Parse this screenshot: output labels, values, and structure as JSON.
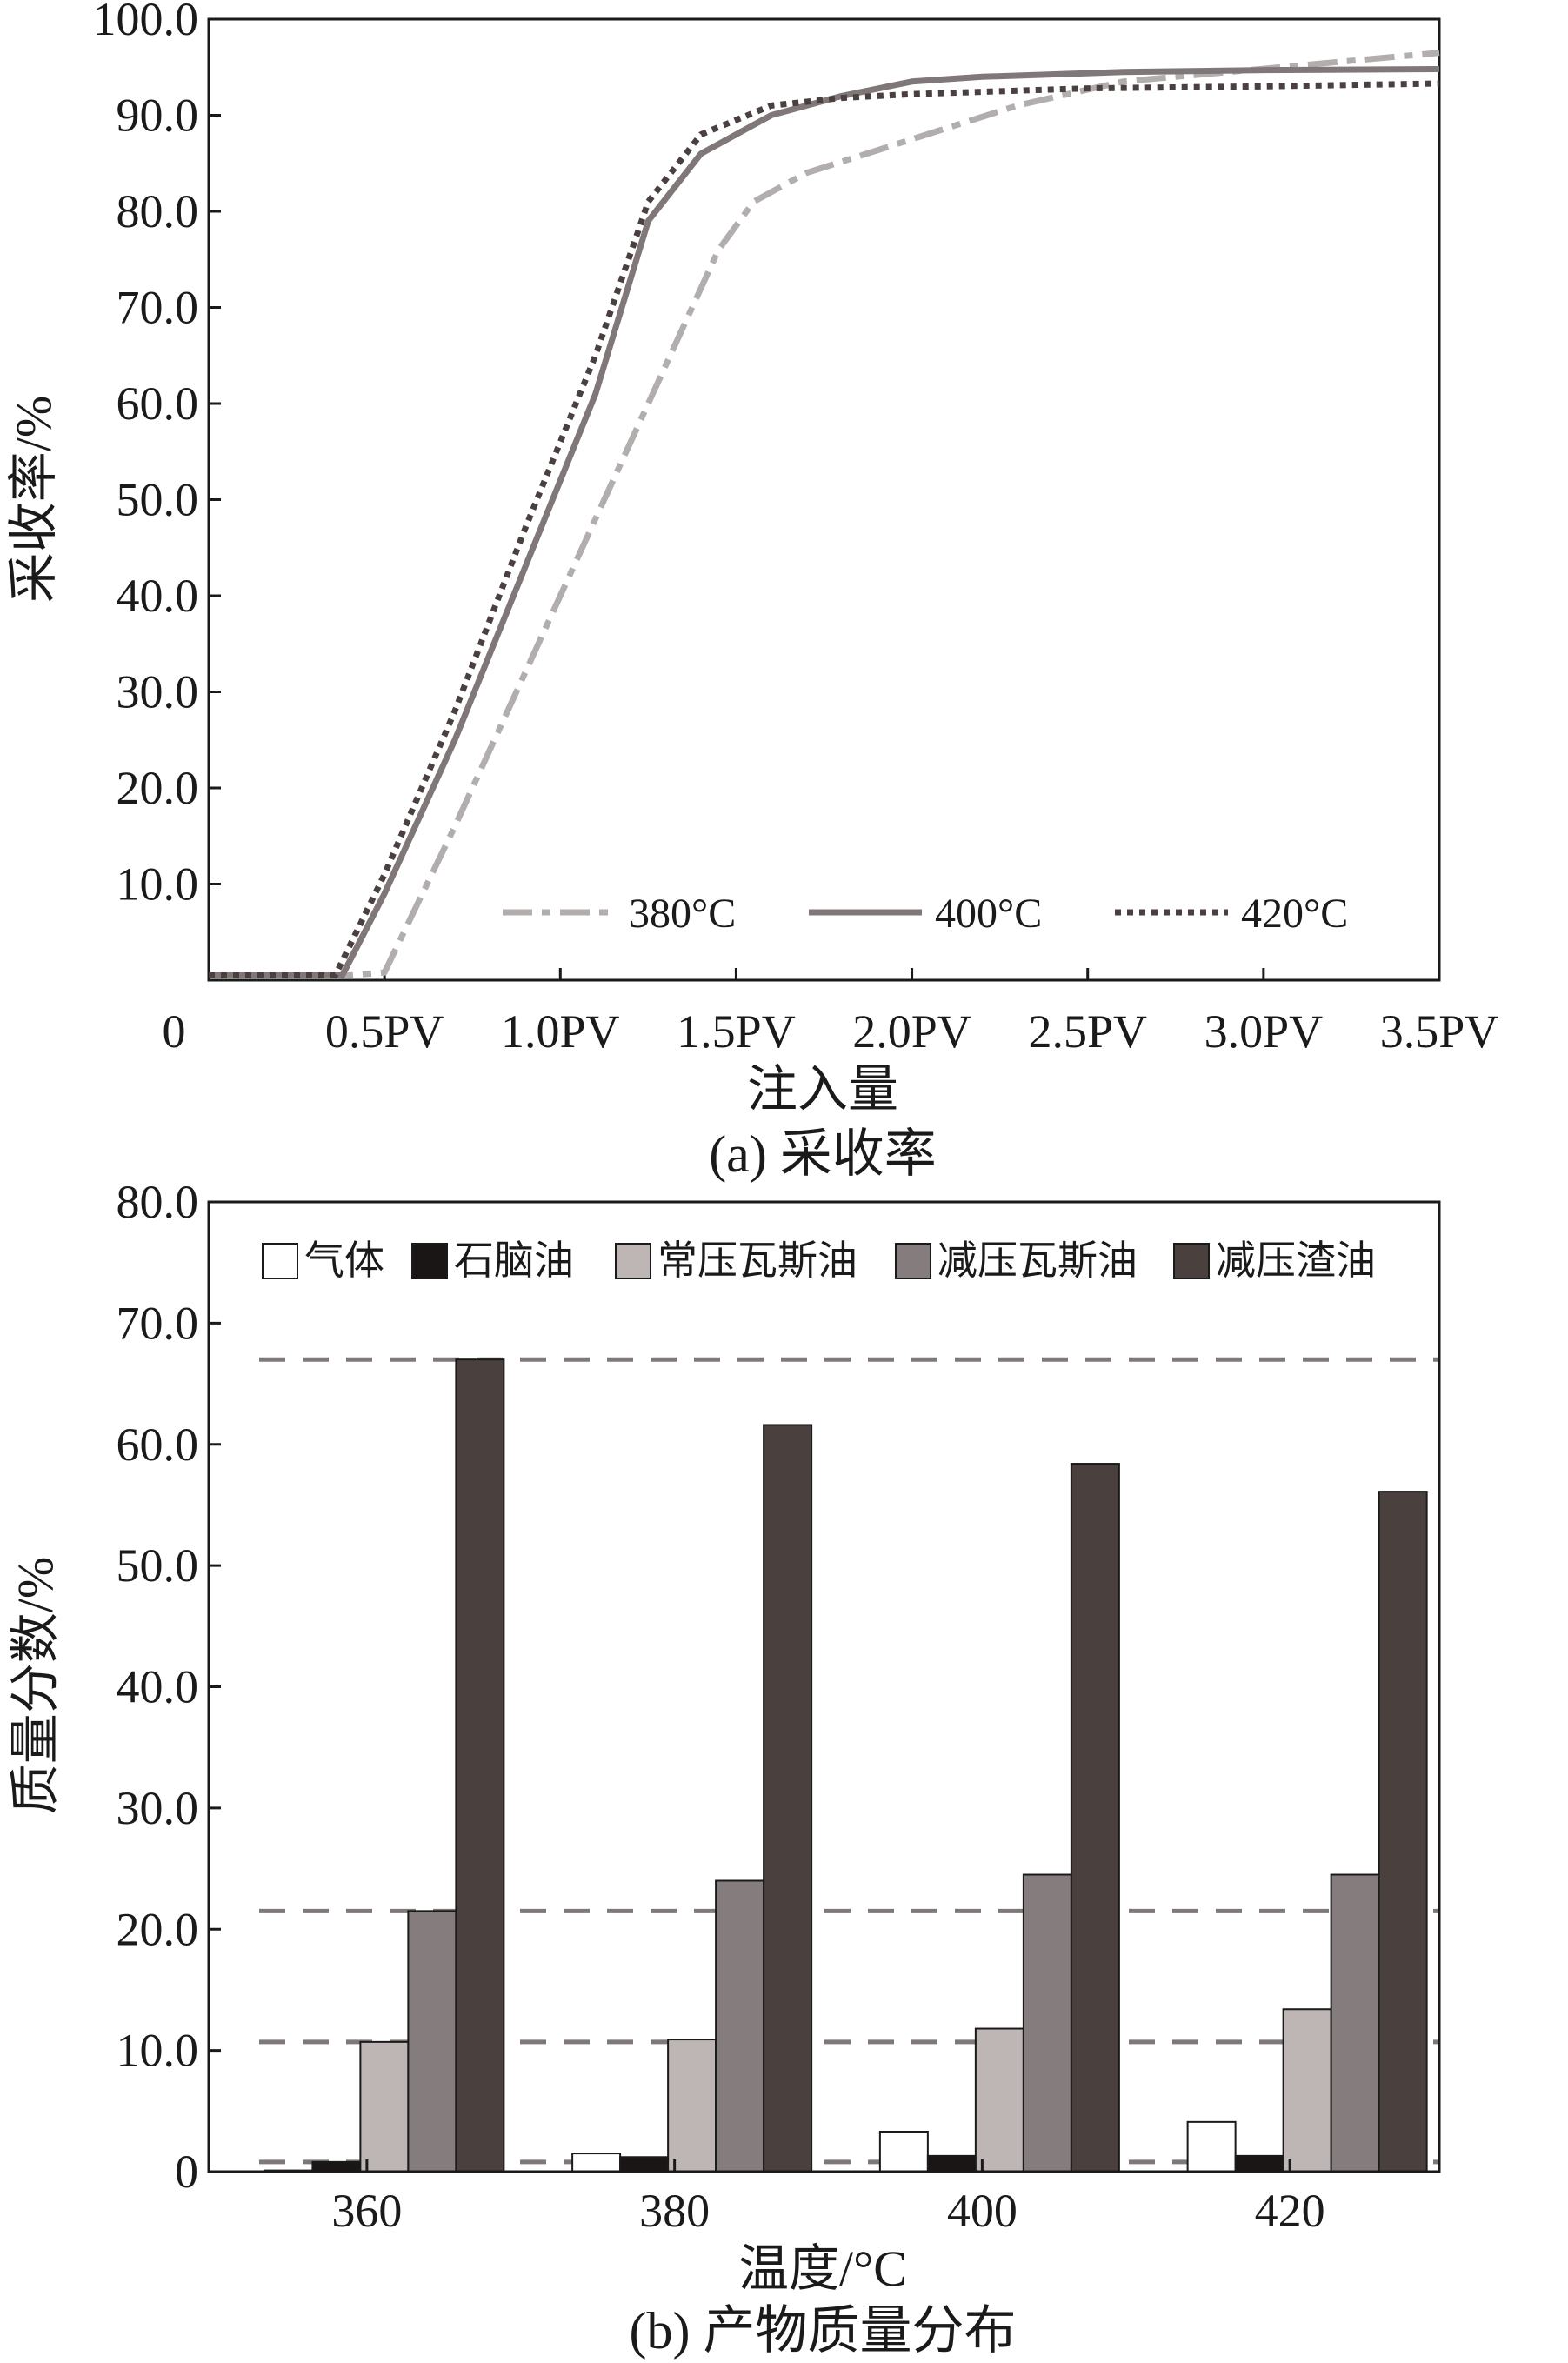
{
  "chart_data": [
    {
      "type": "line",
      "caption": "(a) 采收率",
      "xlabel": "注入量",
      "ylabel": "采收率/%",
      "x_origin_label": "0",
      "xticks": [
        "0.5PV",
        "1.0PV",
        "1.5PV",
        "2.0PV",
        "2.5PV",
        "3.0PV",
        "3.5PV"
      ],
      "xtick_values": [
        0.5,
        1.0,
        1.5,
        2.0,
        2.5,
        3.0,
        3.5
      ],
      "yticks": [
        "10.0",
        "20.0",
        "30.0",
        "40.0",
        "50.0",
        "60.0",
        "70.0",
        "80.0",
        "90.0",
        "100.0"
      ],
      "ytick_values": [
        10,
        20,
        30,
        40,
        50,
        60,
        70,
        80,
        90,
        100
      ],
      "xlim": [
        0,
        3.5
      ],
      "ylim": [
        0,
        100
      ],
      "legend_position": "bottom-right",
      "series": [
        {
          "name": "380°C",
          "color": "#b3aeae",
          "style": "dashdot",
          "x": [
            0,
            0.4,
            0.5,
            0.7,
            0.9,
            1.1,
            1.3,
            1.45,
            1.55,
            1.7,
            2.0,
            2.3,
            2.6,
            2.9,
            3.2,
            3.5
          ],
          "y": [
            0.5,
            0.5,
            0.8,
            16,
            32,
            48,
            64,
            76,
            81,
            84,
            87.5,
            91,
            93.5,
            94.5,
            95.5,
            96.5
          ]
        },
        {
          "name": "400°C",
          "color": "#807878",
          "style": "solid",
          "x": [
            0,
            0.38,
            0.5,
            0.7,
            0.9,
            1.1,
            1.25,
            1.4,
            1.6,
            1.8,
            2.0,
            2.2,
            2.6,
            3.0,
            3.5
          ],
          "y": [
            0.5,
            0.5,
            9,
            25,
            43,
            61,
            79,
            86,
            90,
            92,
            93.5,
            94,
            94.5,
            94.7,
            94.8
          ]
        },
        {
          "name": "420°C",
          "color": "#4a4040",
          "style": "dotted",
          "x": [
            0,
            0.36,
            0.5,
            0.7,
            0.9,
            1.1,
            1.25,
            1.4,
            1.6,
            1.8,
            2.0,
            2.5,
            3.0,
            3.5
          ],
          "y": [
            0.5,
            0.5,
            11,
            28,
            47,
            65,
            81,
            88,
            91,
            91.8,
            92.2,
            92.8,
            93,
            93.3
          ]
        }
      ]
    },
    {
      "type": "bar",
      "caption": "(b) 产物质量分布",
      "xlabel": "温度/°C",
      "ylabel": "质量分数/%",
      "categories": [
        "360",
        "380",
        "400",
        "420"
      ],
      "yticks": [
        "0",
        "10.0",
        "20.0",
        "30.0",
        "40.0",
        "50.0",
        "60.0",
        "70.0",
        "80.0"
      ],
      "ytick_values": [
        0,
        10,
        20,
        30,
        40,
        50,
        60,
        70,
        80
      ],
      "ylim": [
        0,
        80
      ],
      "legend_position": "top",
      "reference_lines": [
        67.0,
        21.5,
        10.7,
        0.8
      ],
      "reference_line_color": "#807878",
      "series": [
        {
          "name": "气体",
          "color": "#ffffff",
          "values": [
            0.1,
            1.5,
            3.3,
            4.1
          ]
        },
        {
          "name": "石脑油",
          "color": "#1a1616",
          "values": [
            0.8,
            1.2,
            1.3,
            1.3
          ]
        },
        {
          "name": "常压瓦斯油",
          "color": "#bdb6b4",
          "values": [
            10.7,
            10.9,
            11.8,
            13.4
          ]
        },
        {
          "name": "减压瓦斯油",
          "color": "#857d7d",
          "values": [
            21.5,
            24.0,
            24.5,
            24.5
          ]
        },
        {
          "name": "减压渣油",
          "color": "#4a403d",
          "values": [
            67.0,
            61.6,
            58.4,
            56.1
          ]
        }
      ]
    }
  ]
}
